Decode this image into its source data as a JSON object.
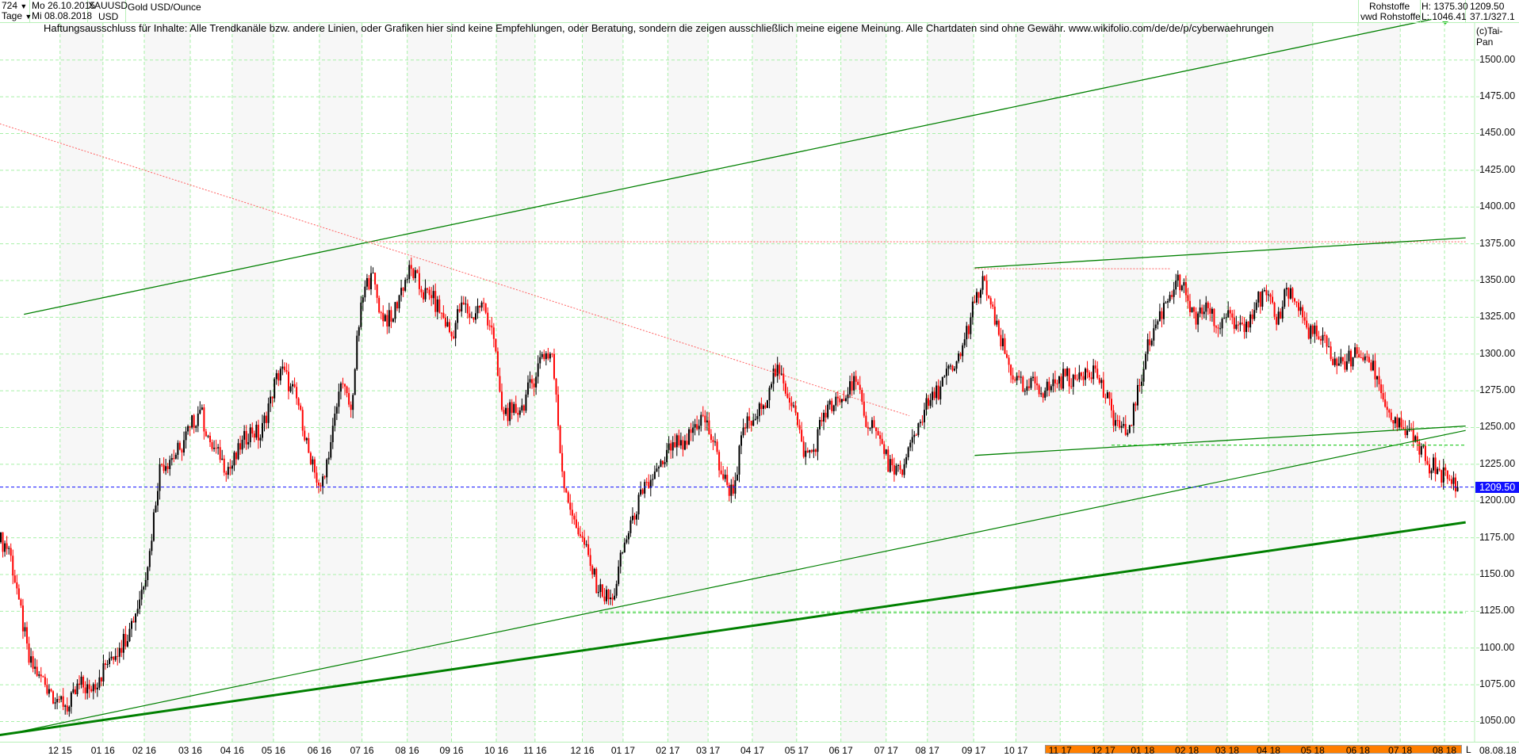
{
  "header": {
    "period": "724",
    "period_arrow": "▼",
    "unit": "Tage",
    "unit_arrow": "▼",
    "start_date": "Mo 26.10.2015",
    "end_date": "Mi 08.08.2018",
    "symbol": "XAUUSD",
    "currency": "USD",
    "instrument": "Gold USD/Ounce",
    "source1": "Rohstoffe",
    "source2": "vwd Rohstoffe",
    "high": "H: 1375.30",
    "low": "L: 1046.41",
    "last": "1209.50",
    "ratio": "37.1/327.1"
  },
  "disclaimer": "Haftungsausschluss für Inhalte: Alle Trendkanäle bzw. andere Linien, oder Grafiken hier sind keine Empfehlungen, oder Beratung, sondern die zeigen ausschließlich meine eigene Meinung. Alle Chartdaten sind ohne Gewähr.  www.wikifolio.com/de/de/p/cyberwaehrungen",
  "copyright": "(c)Tai-Pan",
  "footer": {
    "L": "L",
    "end_date": "08.08.18"
  },
  "colors": {
    "up": "#000000",
    "down": "#ff0000",
    "grid": "#a8f0a8",
    "trend": "#008000",
    "resist": "#ff6060",
    "current": "#1010ff"
  },
  "chart_data": {
    "type": "candlestick",
    "title": "Gold USD/Ounce (XAUUSD)",
    "x_unit": "week index from 26.10.2015",
    "ylim": [
      1035,
      1530
    ],
    "yticks": [
      1050,
      1075,
      1100,
      1125,
      1150,
      1175,
      1200,
      1225,
      1250,
      1275,
      1300,
      1325,
      1350,
      1375,
      1400,
      1425,
      1450,
      1475,
      1500
    ],
    "ytick_labels": [
      "1050.00",
      "1075.00",
      "1100.00",
      "1125.00",
      "1150.00",
      "1175.00",
      "1200.00",
      "1225.00",
      "1250.00",
      "1275.00",
      "1300.00",
      "1325.00",
      "1350.00",
      "1375.00",
      "1400.00",
      "1425.00",
      "1450.00",
      "1475.00",
      "1500.00"
    ],
    "current_price": 1209.5,
    "current_label": "1209.50",
    "months": [
      {
        "w": 5.49,
        "label": "12 15"
      },
      {
        "w": 9.75,
        "label": "01 16"
      },
      {
        "w": 13.86,
        "label": "02 16"
      },
      {
        "w": 18.43,
        "label": "03 16"
      },
      {
        "w": 22.6,
        "label": "04 16"
      },
      {
        "w": 26.7,
        "label": "05 16"
      },
      {
        "w": 31.27,
        "label": "06 16"
      },
      {
        "w": 35.5,
        "label": "07 16"
      },
      {
        "w": 40.0,
        "label": "08 16"
      },
      {
        "w": 44.4,
        "label": "09 16"
      },
      {
        "w": 48.85,
        "label": "10 16"
      },
      {
        "w": 52.7,
        "label": "11 16"
      },
      {
        "w": 57.4,
        "label": "12 16"
      },
      {
        "w": 61.45,
        "label": "01 17"
      },
      {
        "w": 65.9,
        "label": "02 17"
      },
      {
        "w": 69.9,
        "label": "03 17"
      },
      {
        "w": 74.3,
        "label": "04 17"
      },
      {
        "w": 78.7,
        "label": "05 17"
      },
      {
        "w": 83.1,
        "label": "06 17"
      },
      {
        "w": 87.6,
        "label": "07 17"
      },
      {
        "w": 91.7,
        "label": "08 17"
      },
      {
        "w": 96.3,
        "label": "09 17"
      },
      {
        "w": 100.5,
        "label": "10 17"
      },
      {
        "w": 104.9,
        "label": "11 17"
      },
      {
        "w": 109.2,
        "label": "12 17"
      },
      {
        "w": 113.1,
        "label": "01 18"
      },
      {
        "w": 117.5,
        "label": "02 18"
      },
      {
        "w": 121.5,
        "label": "03 18"
      },
      {
        "w": 125.6,
        "label": "04 18"
      },
      {
        "w": 130.0,
        "label": "05 18"
      },
      {
        "w": 134.5,
        "label": "06 18"
      },
      {
        "w": 138.7,
        "label": "07 18"
      },
      {
        "w": 143.1,
        "label": "08 18"
      }
    ],
    "weekly_closes": [
      1168,
      1133,
      1090,
      1082,
      1072,
      1065,
      1060,
      1075,
      1072,
      1080,
      1093,
      1100,
      1113,
      1133,
      1166,
      1225,
      1228,
      1235,
      1250,
      1262,
      1240,
      1228,
      1222,
      1235,
      1250,
      1243,
      1271,
      1290,
      1278,
      1262,
      1225,
      1210,
      1240,
      1280,
      1262,
      1335,
      1355,
      1328,
      1322,
      1345,
      1358,
      1342,
      1338,
      1328,
      1312,
      1335,
      1325,
      1335,
      1318,
      1262,
      1260,
      1265,
      1280,
      1300,
      1300,
      1220,
      1190,
      1175,
      1150,
      1135,
      1133,
      1165,
      1190,
      1205,
      1215,
      1225,
      1240,
      1235,
      1250,
      1258,
      1240,
      1215,
      1205,
      1250,
      1255,
      1265,
      1290,
      1280,
      1265,
      1230,
      1235,
      1260,
      1265,
      1268,
      1285,
      1258,
      1250,
      1232,
      1218,
      1225,
      1245,
      1262,
      1270,
      1285,
      1290,
      1310,
      1335,
      1350,
      1320,
      1300,
      1282,
      1275,
      1280,
      1275,
      1280,
      1285,
      1283,
      1290,
      1290,
      1270,
      1255,
      1245,
      1265,
      1300,
      1320,
      1335,
      1350,
      1340,
      1320,
      1335,
      1318,
      1325,
      1320,
      1322,
      1335,
      1340,
      1320,
      1345,
      1335,
      1318,
      1312,
      1305,
      1292,
      1295,
      1300,
      1298,
      1285,
      1262,
      1250,
      1248,
      1240,
      1225,
      1222,
      1215,
      1209.5
    ],
    "trendlines": [
      {
        "name": "upper-channel-line",
        "from": [
          1.9,
          1327
        ],
        "to": [
          141.8,
          1527.6
        ],
        "style": "solid",
        "width": 1.3,
        "color": "#008000"
      },
      {
        "name": "descending-resistance",
        "from": [
          -0.5,
          1456.6
        ],
        "to": [
          89.9,
          1258
        ],
        "style": "dotted",
        "width": 1,
        "color": "#ff6060"
      },
      {
        "name": "horizontal-resistance-1375",
        "from": [
          36.3,
          1376.3
        ],
        "to": [
          145.2,
          1376.3
        ],
        "style": "dotted",
        "width": 1,
        "color": "#ff6060"
      },
      {
        "name": "horizontal-resistance-1358",
        "from": [
          96.4,
          1358
        ],
        "to": [
          115.9,
          1358
        ],
        "style": "dotted",
        "width": 1,
        "color": "#ff6060"
      },
      {
        "name": "upper-range-line",
        "from": [
          96.4,
          1358.6
        ],
        "to": [
          145.2,
          1379
        ],
        "style": "solid",
        "width": 1.3,
        "color": "#008000"
      },
      {
        "name": "lower-range-line",
        "from": [
          96.4,
          1231
        ],
        "to": [
          145.2,
          1251
        ],
        "style": "solid",
        "width": 1.3,
        "color": "#008000"
      },
      {
        "name": "support-line-thin",
        "from": [
          0,
          1041
        ],
        "to": [
          145.2,
          1248
        ],
        "style": "solid",
        "width": 1.2,
        "color": "#008000"
      },
      {
        "name": "support-line-thick",
        "from": [
          -0.5,
          1040.8
        ],
        "to": [
          145.2,
          1185.5
        ],
        "style": "solid",
        "width": 3,
        "color": "#008000"
      },
      {
        "name": "horizontal-support-1238",
        "from": [
          110,
          1238
        ],
        "to": [
          145.2,
          1238
        ],
        "style": "dashed",
        "width": 1,
        "color": "#00c000"
      },
      {
        "name": "horizontal-support-1124",
        "from": [
          59.1,
          1124
        ],
        "to": [
          145.2,
          1124
        ],
        "style": "dashed",
        "width": 1,
        "color": "#00c000"
      }
    ]
  }
}
